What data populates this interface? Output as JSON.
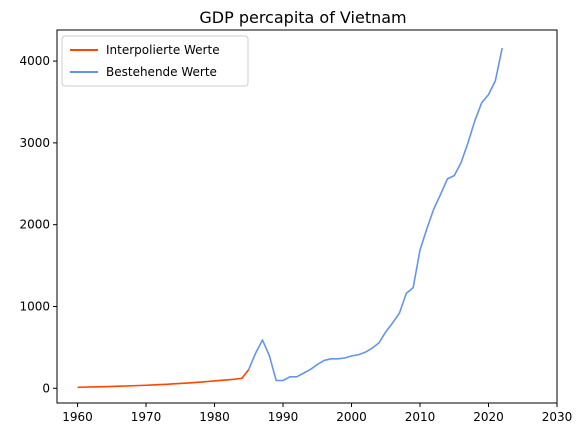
{
  "chart_data": {
    "type": "line",
    "title": "GDP percapita of Vietnam",
    "xlabel": "",
    "ylabel": "",
    "xlim": [
      1957,
      2030
    ],
    "ylim": [
      -180,
      4380
    ],
    "xticks": [
      1960,
      1970,
      1980,
      1990,
      2000,
      2010,
      2020,
      2030
    ],
    "yticks": [
      0,
      1000,
      2000,
      3000,
      4000
    ],
    "grid": false,
    "legend_position": "top-left",
    "series": [
      {
        "name": "Interpolierte Werte",
        "color": "#ff4500",
        "x": [
          1960,
          1961,
          1962,
          1963,
          1964,
          1965,
          1966,
          1967,
          1968,
          1969,
          1970,
          1971,
          1972,
          1973,
          1974,
          1975,
          1976,
          1977,
          1978,
          1979,
          1980,
          1981,
          1982,
          1983,
          1984,
          1985
        ],
        "y": [
          12,
          14,
          16,
          18,
          20,
          22,
          25,
          28,
          31,
          34,
          37,
          41,
          45,
          49,
          54,
          59,
          64,
          70,
          76,
          83,
          90,
          97,
          104,
          112,
          122,
          230
        ]
      },
      {
        "name": "Bestehende Werte",
        "color": "#6495ed",
        "x": [
          1985,
          1986,
          1987,
          1988,
          1989,
          1990,
          1991,
          1992,
          1993,
          1994,
          1995,
          1996,
          1997,
          1998,
          1999,
          2000,
          2001,
          2002,
          2003,
          2004,
          2005,
          2006,
          2007,
          2008,
          2009,
          2010,
          2011,
          2012,
          2013,
          2014,
          2015,
          2016,
          2017,
          2018,
          2019,
          2020,
          2021,
          2022
        ],
        "y": [
          230,
          430,
          590,
          400,
          95,
          95,
          140,
          140,
          185,
          230,
          290,
          340,
          360,
          360,
          370,
          395,
          410,
          440,
          490,
          555,
          690,
          800,
          920,
          1160,
          1230,
          1690,
          1950,
          2190,
          2370,
          2560,
          2600,
          2760,
          3000,
          3270,
          3490,
          3590,
          3760,
          4160
        ]
      }
    ]
  }
}
